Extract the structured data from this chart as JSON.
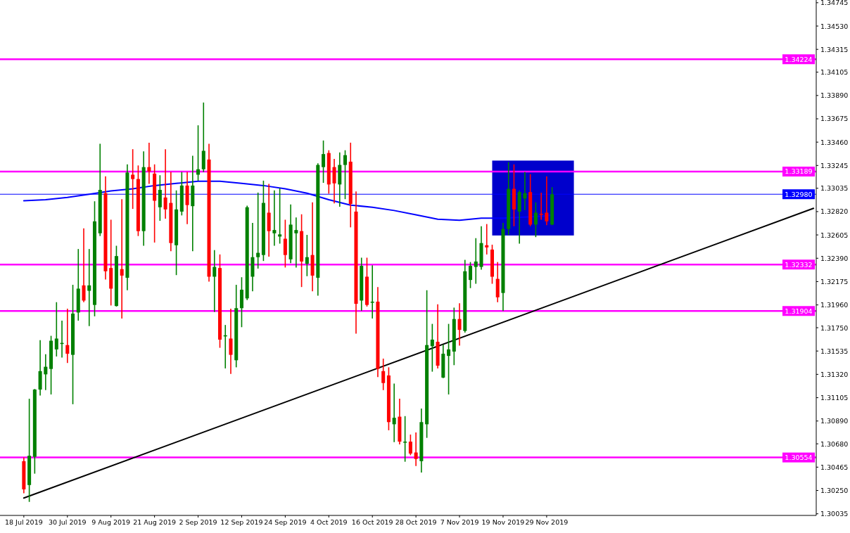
{
  "chart_data": {
    "type": "candlestick",
    "categories": [
      "18 Jul 2019",
      null,
      null,
      null,
      null,
      null,
      null,
      null,
      "30 Jul 2019",
      null,
      null,
      null,
      null,
      null,
      null,
      null,
      "9 Aug 2019",
      null,
      null,
      null,
      null,
      null,
      null,
      null,
      "21 Aug 2019",
      null,
      null,
      null,
      null,
      null,
      null,
      null,
      "2 Sep 2019",
      null,
      null,
      null,
      null,
      null,
      null,
      null,
      "12 Sep 2019",
      null,
      null,
      null,
      null,
      null,
      null,
      null,
      "24 Sep 2019",
      null,
      null,
      null,
      null,
      null,
      null,
      null,
      "4 Oct 2019",
      null,
      null,
      null,
      null,
      null,
      null,
      null,
      "16 Oct 2019",
      null,
      null,
      null,
      null,
      null,
      null,
      null,
      "28 Oct 2019",
      null,
      null,
      null,
      null,
      null,
      null,
      null,
      "7 Nov 2019",
      null,
      null,
      null,
      null,
      null,
      null,
      null,
      "19 Nov 2019",
      null,
      null,
      null,
      null,
      null,
      null,
      null,
      "29 Nov 2019",
      null,
      null,
      null,
      null,
      null,
      null,
      null,
      null,
      null,
      null,
      null,
      null,
      null,
      null,
      null,
      null,
      null,
      null,
      null,
      null,
      null,
      null,
      null,
      null,
      null,
      null,
      null,
      null,
      null,
      null,
      null,
      null,
      null,
      null,
      null,
      null,
      null,
      null,
      null,
      null,
      null,
      null,
      null,
      null,
      null,
      null,
      null,
      null,
      null
    ],
    "ohlc": [
      [
        1.3052,
        1.3055,
        1.3023,
        1.3026
      ],
      [
        1.303,
        1.3109,
        1.3015,
        1.3057
      ],
      [
        1.3056,
        1.3118,
        1.3041,
        1.3118
      ],
      [
        1.3118,
        1.3163,
        1.3113,
        1.3135
      ],
      [
        1.3132,
        1.315,
        1.3118,
        1.3139
      ],
      [
        1.3137,
        1.3167,
        1.3114,
        1.3163
      ],
      [
        1.3155,
        1.3198,
        1.3149,
        1.3165
      ],
      [
        1.316,
        1.3181,
        1.3148,
        1.3161
      ],
      [
        1.3159,
        1.3192,
        1.3143,
        1.3151
      ],
      [
        1.315,
        1.3214,
        1.3105,
        1.3188
      ],
      [
        1.3189,
        1.3247,
        1.3182,
        1.3211
      ],
      [
        1.3214,
        1.3266,
        1.3199,
        1.32
      ],
      [
        1.3209,
        1.3247,
        1.3177,
        1.3214
      ],
      [
        1.3196,
        1.3291,
        1.3186,
        1.3273
      ],
      [
        1.3262,
        1.3344,
        1.326,
        1.3302
      ],
      [
        1.3299,
        1.3314,
        1.322,
        1.3227
      ],
      [
        1.323,
        1.3274,
        1.3196,
        1.3211
      ],
      [
        1.3195,
        1.325,
        1.3195,
        1.3241
      ],
      [
        1.3229,
        1.3293,
        1.3184,
        1.3223
      ],
      [
        1.3221,
        1.3325,
        1.321,
        1.3318
      ],
      [
        1.3316,
        1.3339,
        1.3285,
        1.3312
      ],
      [
        1.3312,
        1.3324,
        1.326,
        1.3264
      ],
      [
        1.3264,
        1.3337,
        1.3251,
        1.3323
      ],
      [
        1.3323,
        1.3345,
        1.3308,
        1.3319
      ],
      [
        1.3317,
        1.3325,
        1.3254,
        1.3292
      ],
      [
        1.3286,
        1.3315,
        1.3274,
        1.3302
      ],
      [
        1.3295,
        1.3339,
        1.3276,
        1.3284
      ],
      [
        1.329,
        1.3318,
        1.3246,
        1.3253
      ],
      [
        1.3251,
        1.3301,
        1.3224,
        1.3284
      ],
      [
        1.3282,
        1.3318,
        1.3279,
        1.3306
      ],
      [
        1.3306,
        1.3318,
        1.3271,
        1.3288
      ],
      [
        1.3287,
        1.3333,
        1.3246,
        1.3306
      ],
      [
        1.3316,
        1.3361,
        1.3311,
        1.3321
      ],
      [
        1.3321,
        1.3382,
        1.3319,
        1.3338
      ],
      [
        1.333,
        1.3344,
        1.3218,
        1.3222
      ],
      [
        1.3222,
        1.3246,
        1.319,
        1.3231
      ],
      [
        1.323,
        1.3242,
        1.3157,
        1.3164
      ],
      [
        1.3167,
        1.3177,
        1.3138,
        1.3168
      ],
      [
        1.3165,
        1.3192,
        1.3133,
        1.315
      ],
      [
        1.3145,
        1.3214,
        1.3139,
        1.3193
      ],
      [
        1.3193,
        1.3221,
        1.3176,
        1.321
      ],
      [
        1.3202,
        1.3287,
        1.3201,
        1.3286
      ],
      [
        1.3222,
        1.3271,
        1.3209,
        1.324
      ],
      [
        1.324,
        1.3299,
        1.323,
        1.3244
      ],
      [
        1.3242,
        1.331,
        1.3237,
        1.329
      ],
      [
        1.3281,
        1.3307,
        1.3241,
        1.3264
      ],
      [
        1.3262,
        1.3301,
        1.3251,
        1.3265
      ],
      [
        1.3259,
        1.3303,
        1.3253,
        1.3261
      ],
      [
        1.3257,
        1.3274,
        1.3231,
        1.3242
      ],
      [
        1.3238,
        1.3288,
        1.3235,
        1.327
      ],
      [
        1.3262,
        1.3276,
        1.3231,
        1.3265
      ],
      [
        1.3264,
        1.3279,
        1.3213,
        1.3236
      ],
      [
        1.3234,
        1.326,
        1.3223,
        1.324
      ],
      [
        1.3242,
        1.329,
        1.3209,
        1.3223
      ],
      [
        1.3221,
        1.3326,
        1.3205,
        1.3325
      ],
      [
        1.3323,
        1.3347,
        1.3309,
        1.3335
      ],
      [
        1.3336,
        1.3338,
        1.3299,
        1.3307
      ],
      [
        1.3323,
        1.333,
        1.329,
        1.3308
      ],
      [
        1.3307,
        1.3336,
        1.3287,
        1.3325
      ],
      [
        1.3325,
        1.3338,
        1.3294,
        1.3334
      ],
      [
        1.3328,
        1.3345,
        1.3268,
        1.3289
      ],
      [
        1.3282,
        1.33,
        1.317,
        1.3197
      ],
      [
        1.32,
        1.3239,
        1.3191,
        1.3232
      ],
      [
        1.3222,
        1.3239,
        1.3195,
        1.3196
      ],
      [
        1.3198,
        1.3232,
        1.3184,
        1.3199
      ],
      [
        1.3199,
        1.3212,
        1.313,
        1.3137
      ],
      [
        1.3135,
        1.3146,
        1.3118,
        1.3124
      ],
      [
        1.3131,
        1.3138,
        1.3081,
        1.3088
      ],
      [
        1.3086,
        1.3123,
        1.307,
        1.3092
      ],
      [
        1.3093,
        1.3109,
        1.3068,
        1.307
      ],
      [
        1.3069,
        1.3093,
        1.3052,
        1.307
      ],
      [
        1.307,
        1.3076,
        1.3058,
        1.3059
      ],
      [
        1.306,
        1.3078,
        1.3048,
        1.3054
      ],
      [
        1.3052,
        1.31,
        1.3042,
        1.3088
      ],
      [
        1.3086,
        1.3209,
        1.3074,
        1.3159
      ],
      [
        1.3158,
        1.3178,
        1.3135,
        1.3164
      ],
      [
        1.3162,
        1.3196,
        1.3138,
        1.314
      ],
      [
        1.3129,
        1.3159,
        1.3129,
        1.3151
      ],
      [
        1.3149,
        1.3178,
        1.3114,
        1.3155
      ],
      [
        1.3153,
        1.3193,
        1.3141,
        1.3183
      ],
      [
        1.3183,
        1.3197,
        1.3159,
        1.3173
      ],
      [
        1.3172,
        1.3237,
        1.3171,
        1.3227
      ],
      [
        1.3219,
        1.3235,
        1.3212,
        1.3232
      ],
      [
        1.3231,
        1.3257,
        1.3216,
        1.3236
      ],
      [
        1.3231,
        1.3268,
        1.3229,
        1.3253
      ],
      [
        1.3251,
        1.327,
        1.3243,
        1.3249
      ],
      [
        1.3247,
        1.3251,
        1.3216,
        1.3222
      ],
      [
        1.322,
        1.3235,
        1.3199,
        1.3203
      ],
      [
        1.3207,
        1.3271,
        1.3191,
        1.3266
      ],
      [
        1.3266,
        1.3327,
        1.3261,
        1.3303
      ],
      [
        1.3303,
        1.3325,
        1.3269,
        1.3284
      ],
      [
        1.3282,
        1.3301,
        1.3253,
        1.33
      ],
      [
        1.3294,
        1.3318,
        1.3284,
        1.3299
      ],
      [
        1.33,
        1.3316,
        1.3269,
        1.327
      ],
      [
        1.327,
        1.329,
        1.3259,
        1.3281
      ],
      [
        1.328,
        1.3299,
        1.3275,
        1.3279
      ],
      [
        1.3281,
        1.3314,
        1.327,
        1.3273
      ],
      [
        1.327,
        1.3304,
        1.327,
        1.3298
      ],
      null,
      null,
      null,
      null,
      null,
      null,
      null,
      null,
      null,
      null,
      null,
      null,
      null,
      null,
      null,
      null,
      null,
      null,
      null,
      null,
      null,
      null,
      null,
      null,
      null,
      null,
      null,
      null,
      null,
      null,
      null,
      null,
      null,
      null,
      null,
      null,
      null,
      null,
      null,
      null,
      null,
      null,
      null,
      null,
      null,
      null,
      null,
      null
    ],
    "colors": [
      "#ff0000",
      "#008000",
      "#008000",
      "#008000",
      "#008000",
      "#008000",
      "#008000",
      "#008000",
      "#ff0000",
      "#008000",
      "#008000",
      "#ff0000",
      "#008000",
      "#008000",
      "#008000",
      "#ff0000",
      "#ff0000",
      "#008000",
      "#ff0000",
      "#008000",
      "#ff0000",
      "#ff0000",
      "#008000",
      "#ff0000",
      "#ff0000",
      "#008000",
      "#ff0000",
      "#ff0000",
      "#008000",
      "#008000",
      "#ff0000",
      "#008000",
      "#008000",
      "#008000",
      "#ff0000",
      "#008000",
      "#ff0000",
      "#008000",
      "#ff0000",
      "#008000",
      "#008000",
      "#008000",
      "#008000",
      "#008000",
      "#008000",
      "#ff0000",
      "#008000",
      "#008000",
      "#ff0000",
      "#008000",
      "#008000",
      "#ff0000",
      "#008000",
      "#ff0000",
      "#008000",
      "#008000",
      "#ff0000",
      "#ff0000",
      "#008000",
      "#008000",
      "#ff0000",
      "#ff0000",
      "#008000",
      "#ff0000",
      "#008000",
      "#ff0000",
      "#ff0000",
      "#ff0000",
      "#008000",
      "#ff0000",
      "#008000",
      "#ff0000",
      "#ff0000",
      "#008000",
      "#008000",
      "#008000",
      "#ff0000",
      "#008000",
      "#008000",
      "#008000",
      "#ff0000",
      "#008000",
      "#008000",
      "#008000",
      "#008000",
      "#ff0000",
      "#ff0000",
      "#ff0000",
      "#008000",
      "#008000",
      "#ff0000",
      "#008000",
      "#008000",
      "#ff0000",
      "#008000",
      "#ff0000",
      "#ff0000",
      "#008000",
      null,
      null,
      null,
      null,
      null,
      null,
      null,
      null,
      null,
      null,
      null,
      null,
      null,
      null,
      null,
      null,
      null,
      null,
      null,
      null,
      null,
      null,
      null,
      null,
      null,
      null,
      null,
      null,
      null,
      null,
      null,
      null,
      null,
      null,
      null,
      null,
      null,
      null,
      null,
      null,
      null,
      null,
      null,
      null,
      null,
      null,
      null,
      null
    ],
    "series": [
      {
        "type": "line",
        "color": "#0000ff",
        "values": [
          1.3292,
          null,
          null,
          null,
          1.3293,
          null,
          null,
          null,
          1.3295,
          null,
          null,
          null,
          1.3298,
          null,
          null,
          null,
          1.3301,
          null,
          null,
          null,
          1.3303,
          null,
          null,
          null,
          1.3306,
          null,
          null,
          null,
          1.3308,
          null,
          null,
          null,
          1.331,
          null,
          null,
          null,
          1.331,
          null,
          null,
          null,
          1.3308,
          null,
          null,
          null,
          1.3306,
          null,
          null,
          null,
          1.3303,
          null,
          null,
          null,
          1.3299,
          null,
          null,
          null,
          1.3293,
          null,
          null,
          null,
          1.3288,
          null,
          null,
          null,
          1.3286,
          null,
          null,
          null,
          1.3283,
          null,
          null,
          null,
          1.3279,
          null,
          null,
          null,
          1.3275,
          null,
          null,
          null,
          1.3274,
          null,
          null,
          null,
          1.3276,
          null,
          null,
          null,
          1.3276,
          null,
          null,
          null,
          1.3277,
          null,
          null,
          null,
          1.3278,
          1.3279,
          null,
          null,
          null,
          null,
          null,
          null,
          null,
          null,
          null,
          null,
          null,
          null,
          null,
          null,
          null,
          null,
          null,
          null,
          null,
          null,
          null,
          null,
          null,
          null,
          null,
          null,
          null,
          null,
          null,
          null,
          null,
          null,
          null,
          null,
          null,
          null,
          null,
          null,
          null,
          null,
          null,
          null,
          null,
          null,
          null,
          null,
          null,
          null
        ]
      },
      {
        "type": "line",
        "color": "#000000",
        "values": [
          1.3018,
          null,
          null,
          null,
          null,
          null,
          null,
          null,
          null,
          null,
          null,
          null,
          null,
          null,
          null,
          null,
          null,
          null,
          null,
          null,
          null,
          null,
          null,
          null,
          null,
          null,
          null,
          null,
          null,
          null,
          null,
          null,
          null,
          null,
          null,
          null,
          null,
          null,
          null,
          null,
          null,
          null,
          null,
          null,
          null,
          null,
          null,
          null,
          null,
          null,
          null,
          null,
          null,
          null,
          null,
          null,
          null,
          null,
          null,
          null,
          null,
          null,
          null,
          null,
          null,
          null,
          null,
          null,
          null,
          null,
          null,
          null,
          null,
          null,
          null,
          null,
          null,
          null,
          null,
          null,
          null,
          null,
          null,
          null,
          null,
          null,
          null,
          null,
          null,
          null,
          null,
          null,
          null,
          null,
          null,
          null,
          null,
          null,
          null,
          null,
          null,
          null,
          null,
          null,
          null,
          null,
          null,
          null,
          null,
          null,
          null,
          null,
          null,
          null,
          null,
          null,
          null,
          null,
          null,
          null,
          null,
          null,
          null,
          null,
          null,
          null,
          null,
          null,
          null,
          null,
          null,
          null,
          null,
          null,
          null,
          null,
          null,
          null,
          null,
          null,
          null,
          null,
          null,
          null,
          null,
          1.3285
        ]
      }
    ],
    "ylim": [
      1.3002,
      1.3477
    ],
    "yticks": [
      1.30035,
      {
        "value": 1.3025,
        "label": "1.30250"
      },
      1.30465,
      {
        "value": 1.3068,
        "label": "1.30680"
      },
      {
        "value": 1.3089,
        "label": "1.30890"
      },
      1.31105,
      {
        "value": 1.3132,
        "label": "1.31320"
      },
      1.31535,
      {
        "value": 1.3175,
        "label": "1.31750"
      },
      {
        "value": 1.3196,
        "label": "1.31960"
      },
      1.32175,
      {
        "value": 1.3239,
        "label": "1.32390"
      },
      1.32605,
      {
        "value": 1.3282,
        "label": "1.32820"
      },
      1.33035,
      1.33245,
      {
        "value": 1.3346,
        "label": "1.33460"
      },
      1.33675,
      {
        "value": 1.3389,
        "label": "1.33890"
      },
      1.34105,
      1.34315,
      {
        "value": 1.3453,
        "label": "1.34530"
      },
      1.34745
    ],
    "ref_lines": [
      {
        "axis": "y",
        "value": 1.34224,
        "label": "1.34224",
        "color": "#ff00ff"
      },
      {
        "axis": "y",
        "value": 1.33189,
        "label": "1.33189",
        "color": "#ff00ff"
      },
      {
        "axis": "y",
        "value": 1.3298,
        "label": "1.32980",
        "color": "#0000ff"
      },
      {
        "axis": "y",
        "value": 1.32332,
        "label": "1.32332",
        "color": "#ff00ff"
      },
      {
        "axis": "y",
        "value": 1.31904,
        "label": "1.31904",
        "color": "#ff00ff"
      },
      {
        "axis": "y",
        "value": 1.30554,
        "label": "1.30554",
        "color": "#ff00ff"
      }
    ],
    "bands": [
      {
        "axis": "y",
        "from": 1.326,
        "to": 1.3329,
        "color": "#0000cc"
      }
    ]
  }
}
